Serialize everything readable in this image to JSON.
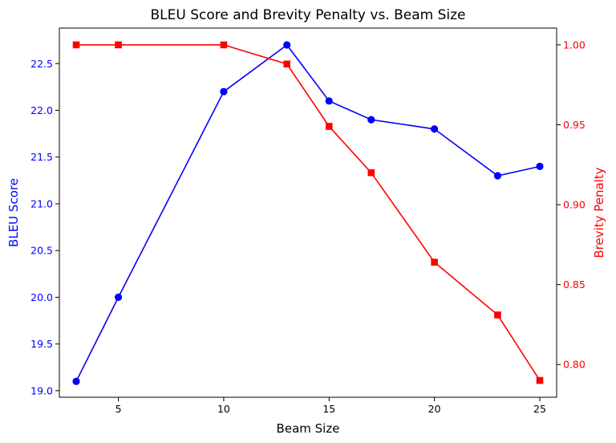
{
  "chart_data": {
    "type": "line",
    "title": "BLEU Score and Brevity Penalty vs. Beam Size",
    "xlabel": "Beam Size",
    "x": [
      3,
      5,
      10,
      13,
      15,
      17,
      20,
      23,
      25
    ],
    "x_ticks": [
      5,
      10,
      15,
      20,
      25
    ],
    "xlim": [
      2.2,
      25.8
    ],
    "grid": false,
    "legend": "none",
    "axes": {
      "left": {
        "label": "BLEU Score",
        "color": "#0000ff",
        "ylim": [
          18.93,
          22.88
        ],
        "ticks": [
          19.0,
          19.5,
          20.0,
          20.5,
          21.0,
          21.5,
          22.0,
          22.5
        ]
      },
      "right": {
        "label": "Brevity Penalty",
        "color": "#ff0000",
        "ylim": [
          0.7795,
          1.0105
        ],
        "ticks": [
          0.8,
          0.85,
          0.9,
          0.95,
          1.0
        ]
      }
    },
    "series": [
      {
        "axis": "left",
        "color": "#0000ff",
        "marker": "circle",
        "values": [
          19.1,
          20.0,
          22.2,
          22.7,
          22.1,
          21.9,
          21.8,
          21.3,
          21.4
        ]
      },
      {
        "axis": "right",
        "color": "#ff0000",
        "marker": "square",
        "values": [
          1.0,
          1.0,
          1.0,
          0.988,
          0.949,
          0.92,
          0.864,
          0.831,
          0.79
        ]
      }
    ]
  }
}
